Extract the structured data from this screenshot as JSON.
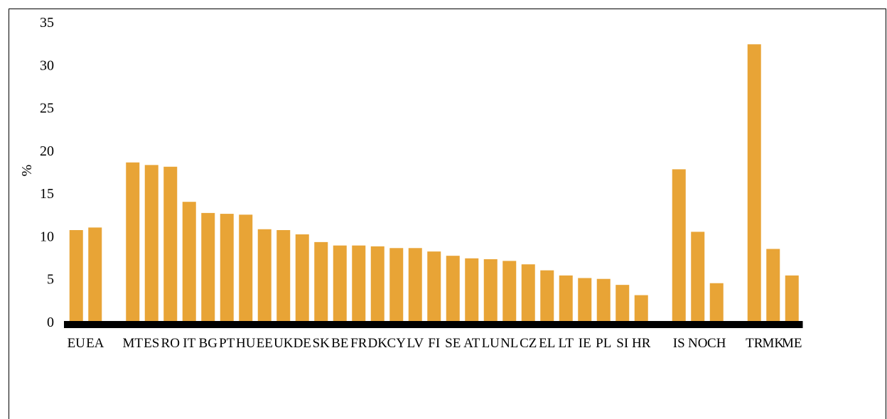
{
  "chart_data": {
    "type": "bar",
    "ylabel": "%",
    "ylim": [
      0,
      35
    ],
    "yticks": [
      0,
      5,
      10,
      15,
      20,
      25,
      30,
      35
    ],
    "grid": false,
    "legend": "none",
    "bar_color": "#E8A436",
    "baseline_color": "#000000",
    "categories": [
      "EU",
      "EA",
      "",
      "MT",
      "ES",
      "RO",
      "IT",
      "BG",
      "PT",
      "HU",
      "EE",
      "UK",
      "DE",
      "SK",
      "BE",
      "FR",
      "DK",
      "CY",
      "LV",
      "FI",
      "SE",
      "AT",
      "LU",
      "NL",
      "CZ",
      "EL",
      "LT",
      "IE",
      "PL",
      "SI",
      "HR",
      "",
      "IS",
      "NO",
      "CH",
      "",
      "TR",
      "MK",
      "ME"
    ],
    "values": [
      10.7,
      11.0,
      null,
      18.6,
      18.3,
      18.1,
      14.0,
      12.7,
      12.6,
      12.5,
      10.8,
      10.7,
      10.2,
      9.3,
      8.9,
      8.9,
      8.8,
      8.6,
      8.6,
      8.2,
      7.7,
      7.4,
      7.3,
      7.1,
      6.7,
      6.0,
      5.4,
      5.1,
      5.0,
      4.3,
      3.1,
      null,
      17.8,
      10.5,
      4.5,
      null,
      32.4,
      8.5,
      5.4
    ]
  }
}
